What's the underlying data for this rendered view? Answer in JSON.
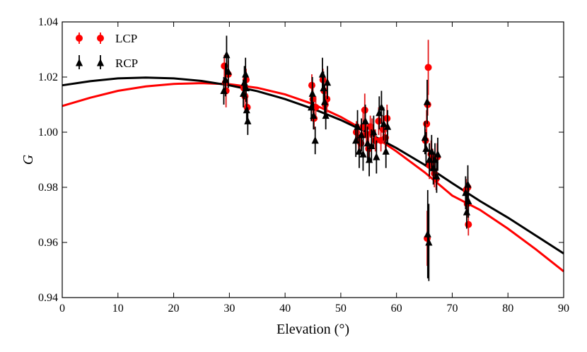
{
  "chart_data": {
    "type": "scatter",
    "xlabel": "Elevation (°)",
    "ylabel": "G",
    "xlim": [
      0,
      90
    ],
    "ylim": [
      0.94,
      1.04
    ],
    "xticks": [
      "0",
      "10",
      "20",
      "30",
      "40",
      "50",
      "60",
      "70",
      "80",
      "90"
    ],
    "yticks": [
      "0.94",
      "0.96",
      "0.98",
      "1.00",
      "1.02",
      "1.04"
    ],
    "legend": {
      "position": "top-left"
    },
    "colors": {
      "LCP": "#ff0000",
      "RCP": "#000000",
      "LCP_errorbar": "#e31a1c"
    },
    "series": [
      {
        "name": "LCP",
        "marker": "circle",
        "points": [
          {
            "x": 29.1,
            "y": 1.024,
            "e": 0.004
          },
          {
            "x": 29.3,
            "y": 1.018,
            "e": 0.005
          },
          {
            "x": 29.4,
            "y": 1.015,
            "e": 0.006
          },
          {
            "x": 29.8,
            "y": 1.021,
            "e": 0.005
          },
          {
            "x": 32.6,
            "y": 1.016,
            "e": 0.004
          },
          {
            "x": 32.8,
            "y": 1.013,
            "e": 0.005
          },
          {
            "x": 33.0,
            "y": 1.019,
            "e": 0.004
          },
          {
            "x": 33.2,
            "y": 1.009,
            "e": 0.005
          },
          {
            "x": 44.8,
            "y": 1.017,
            "e": 0.004
          },
          {
            "x": 45.0,
            "y": 1.012,
            "e": 0.005
          },
          {
            "x": 45.2,
            "y": 1.005,
            "e": 0.004
          },
          {
            "x": 45.5,
            "y": 1.009,
            "e": 0.004
          },
          {
            "x": 46.8,
            "y": 1.019,
            "e": 0.004
          },
          {
            "x": 47.0,
            "y": 1.015,
            "e": 0.005
          },
          {
            "x": 47.2,
            "y": 1.01,
            "e": 0.004
          },
          {
            "x": 47.5,
            "y": 1.012,
            "e": 0.005
          },
          {
            "x": 52.8,
            "y": 1.0,
            "e": 0.004
          },
          {
            "x": 53.2,
            "y": 0.998,
            "e": 0.005
          },
          {
            "x": 53.6,
            "y": 0.996,
            "e": 0.004
          },
          {
            "x": 54.0,
            "y": 1.002,
            "e": 0.005
          },
          {
            "x": 54.3,
            "y": 1.008,
            "e": 0.006
          },
          {
            "x": 54.6,
            "y": 0.999,
            "e": 0.004
          },
          {
            "x": 55.0,
            "y": 0.994,
            "e": 0.005
          },
          {
            "x": 55.3,
            "y": 1.002,
            "e": 0.004
          },
          {
            "x": 55.6,
            "y": 1.0,
            "e": 0.005
          },
          {
            "x": 56.2,
            "y": 0.997,
            "e": 0.004
          },
          {
            "x": 56.8,
            "y": 1.004,
            "e": 0.005
          },
          {
            "x": 57.2,
            "y": 0.997,
            "e": 0.004
          },
          {
            "x": 57.6,
            "y": 1.001,
            "e": 0.005
          },
          {
            "x": 58.0,
            "y": 0.998,
            "e": 0.004
          },
          {
            "x": 58.3,
            "y": 1.005,
            "e": 0.005
          },
          {
            "x": 65.2,
            "y": 0.997,
            "e": 0.004
          },
          {
            "x": 65.4,
            "y": 1.003,
            "e": 0.005
          },
          {
            "x": 65.6,
            "y": 1.01,
            "e": 0.004
          },
          {
            "x": 65.7,
            "y": 1.0235,
            "e": 0.01
          },
          {
            "x": 65.5,
            "y": 0.9615,
            "e": 0.01
          },
          {
            "x": 65.9,
            "y": 0.988,
            "e": 0.005
          },
          {
            "x": 66.2,
            "y": 0.992,
            "e": 0.005
          },
          {
            "x": 66.5,
            "y": 0.99,
            "e": 0.004
          },
          {
            "x": 66.8,
            "y": 0.985,
            "e": 0.005
          },
          {
            "x": 67.1,
            "y": 0.983,
            "e": 0.004
          },
          {
            "x": 67.3,
            "y": 0.991,
            "e": 0.005
          },
          {
            "x": 72.5,
            "y": 0.979,
            "e": 0.004
          },
          {
            "x": 72.7,
            "y": 0.974,
            "e": 0.005
          },
          {
            "x": 72.9,
            "y": 0.9665,
            "e": 0.004
          },
          {
            "x": 72.8,
            "y": 0.98,
            "e": 0.004
          }
        ]
      },
      {
        "name": "RCP",
        "marker": "triangle-up",
        "points": [
          {
            "x": 29.0,
            "y": 1.015,
            "e": 0.005
          },
          {
            "x": 29.3,
            "y": 1.019,
            "e": 0.006
          },
          {
            "x": 29.5,
            "y": 1.028,
            "e": 0.007
          },
          {
            "x": 29.8,
            "y": 1.022,
            "e": 0.006
          },
          {
            "x": 32.5,
            "y": 1.014,
            "e": 0.005
          },
          {
            "x": 32.7,
            "y": 1.018,
            "e": 0.006
          },
          {
            "x": 32.9,
            "y": 1.021,
            "e": 0.006
          },
          {
            "x": 33.1,
            "y": 1.008,
            "e": 0.005
          },
          {
            "x": 33.3,
            "y": 1.004,
            "e": 0.005
          },
          {
            "x": 33.0,
            "y": 1.016,
            "e": 0.005
          },
          {
            "x": 44.7,
            "y": 1.009,
            "e": 0.005
          },
          {
            "x": 44.9,
            "y": 1.014,
            "e": 0.006
          },
          {
            "x": 45.1,
            "y": 1.006,
            "e": 0.005
          },
          {
            "x": 45.4,
            "y": 0.997,
            "e": 0.005
          },
          {
            "x": 46.7,
            "y": 1.021,
            "e": 0.006
          },
          {
            "x": 46.9,
            "y": 1.016,
            "e": 0.006
          },
          {
            "x": 47.1,
            "y": 1.011,
            "e": 0.006
          },
          {
            "x": 47.3,
            "y": 1.006,
            "e": 0.005
          },
          {
            "x": 47.6,
            "y": 1.018,
            "e": 0.006
          },
          {
            "x": 52.7,
            "y": 0.997,
            "e": 0.006
          },
          {
            "x": 53.0,
            "y": 1.002,
            "e": 0.006
          },
          {
            "x": 53.3,
            "y": 0.993,
            "e": 0.006
          },
          {
            "x": 53.7,
            "y": 0.999,
            "e": 0.006
          },
          {
            "x": 54.0,
            "y": 0.992,
            "e": 0.006
          },
          {
            "x": 54.4,
            "y": 1.004,
            "e": 0.006
          },
          {
            "x": 54.8,
            "y": 0.996,
            "e": 0.006
          },
          {
            "x": 55.1,
            "y": 0.99,
            "e": 0.006
          },
          {
            "x": 55.5,
            "y": 0.995,
            "e": 0.006
          },
          {
            "x": 55.9,
            "y": 1.0,
            "e": 0.006
          },
          {
            "x": 56.4,
            "y": 0.991,
            "e": 0.006
          },
          {
            "x": 56.9,
            "y": 1.007,
            "e": 0.006
          },
          {
            "x": 57.3,
            "y": 1.009,
            "e": 0.006
          },
          {
            "x": 57.7,
            "y": 1.003,
            "e": 0.006
          },
          {
            "x": 58.1,
            "y": 0.993,
            "e": 0.006
          },
          {
            "x": 58.4,
            "y": 1.002,
            "e": 0.006
          },
          {
            "x": 65.1,
            "y": 0.998,
            "e": 0.006
          },
          {
            "x": 65.3,
            "y": 0.994,
            "e": 0.006
          },
          {
            "x": 65.5,
            "y": 1.011,
            "e": 0.008
          },
          {
            "x": 65.6,
            "y": 0.963,
            "e": 0.016
          },
          {
            "x": 65.8,
            "y": 0.96,
            "e": 0.014
          },
          {
            "x": 65.9,
            "y": 0.99,
            "e": 0.006
          },
          {
            "x": 66.3,
            "y": 0.993,
            "e": 0.006
          },
          {
            "x": 66.6,
            "y": 0.987,
            "e": 0.006
          },
          {
            "x": 66.9,
            "y": 0.99,
            "e": 0.006
          },
          {
            "x": 67.2,
            "y": 0.984,
            "e": 0.006
          },
          {
            "x": 67.4,
            "y": 0.992,
            "e": 0.006
          },
          {
            "x": 72.4,
            "y": 0.978,
            "e": 0.006
          },
          {
            "x": 72.6,
            "y": 0.971,
            "e": 0.006
          },
          {
            "x": 72.8,
            "y": 0.981,
            "e": 0.007
          },
          {
            "x": 72.9,
            "y": 0.975,
            "e": 0.006
          }
        ]
      }
    ],
    "fits": [
      {
        "name": "LCP",
        "color": "#ff0000",
        "x": [
          0,
          5,
          10,
          15,
          20,
          25,
          30,
          35,
          40,
          45,
          50,
          55,
          60,
          65,
          70,
          75,
          80,
          85,
          90
        ],
        "y": [
          1.0095,
          1.0125,
          1.015,
          1.0166,
          1.0175,
          1.0178,
          1.0174,
          1.0161,
          1.0137,
          1.0102,
          1.0055,
          0.9998,
          0.993,
          0.9855,
          0.977,
          0.9718,
          0.965,
          0.9575,
          0.9495
        ]
      },
      {
        "name": "RCP",
        "color": "#000000",
        "x": [
          0,
          5,
          10,
          15,
          20,
          25,
          30,
          35,
          40,
          45,
          50,
          55,
          60,
          65,
          70,
          75,
          80,
          85,
          90
        ],
        "y": [
          1.017,
          1.0185,
          1.0195,
          1.0198,
          1.0195,
          1.0186,
          1.017,
          1.0149,
          1.012,
          1.0085,
          1.0044,
          0.9996,
          0.9942,
          0.9882,
          0.9815,
          0.975,
          0.969,
          0.9625,
          0.956
        ]
      }
    ]
  }
}
